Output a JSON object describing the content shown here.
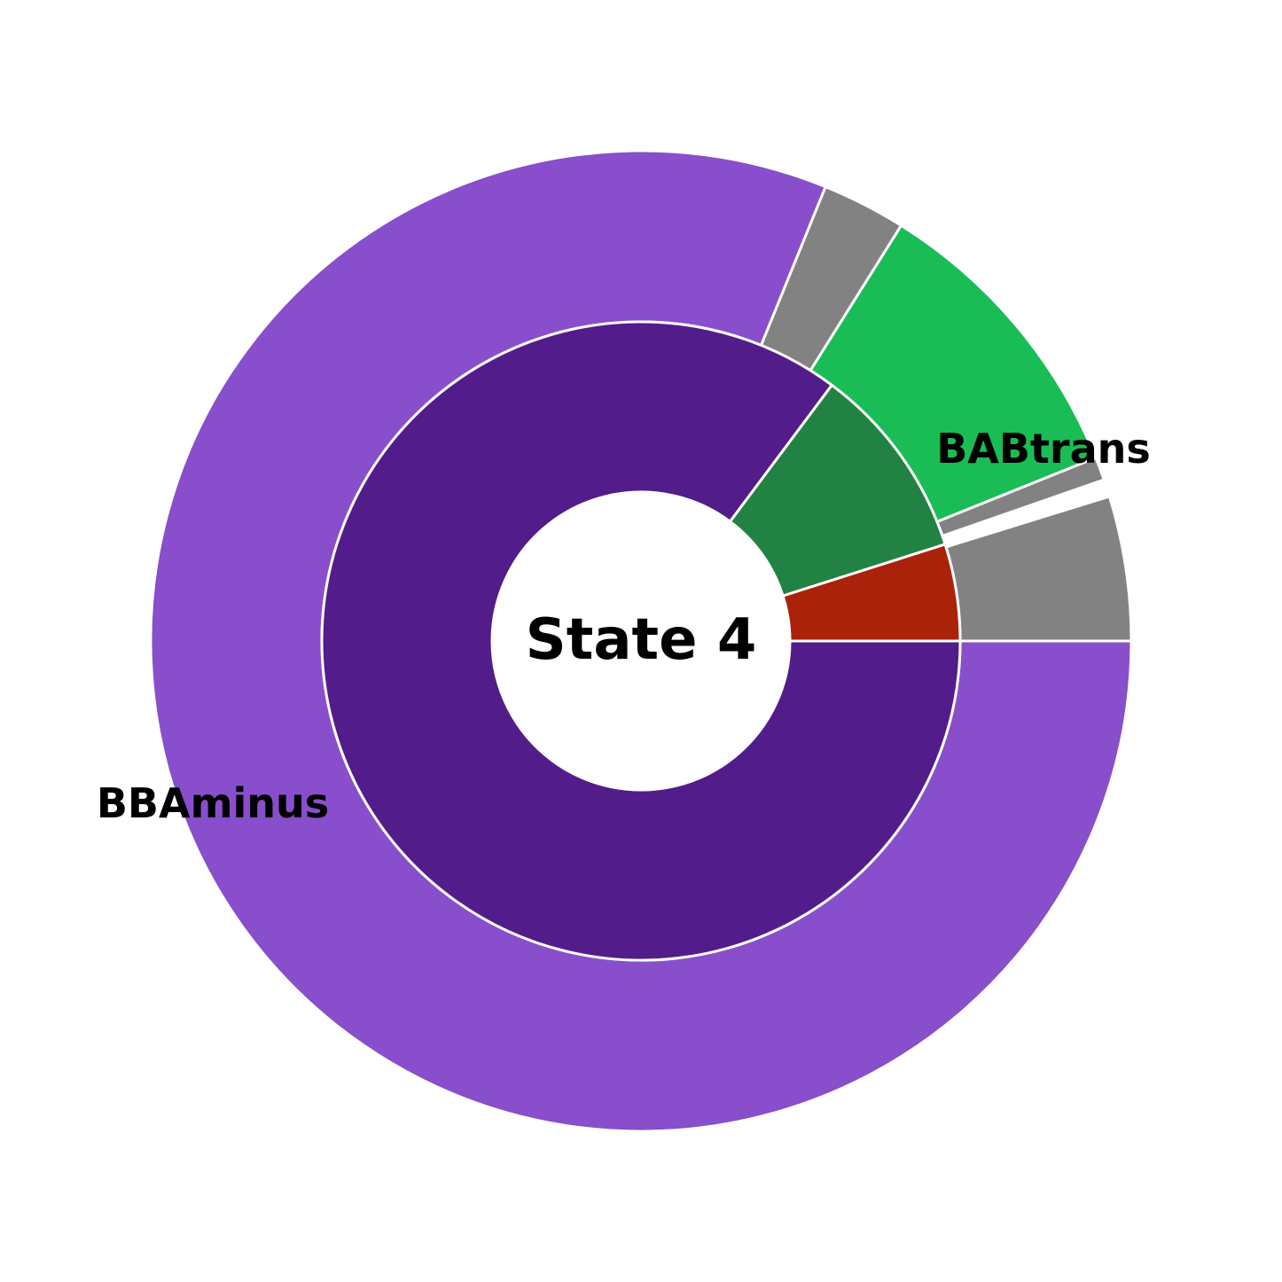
{
  "chart_data": {
    "type": "pie",
    "subtype": "nested-donut",
    "center_text": "State 4",
    "inner_ring": [
      {
        "value": 85.2,
        "color": "#521d8a"
      },
      {
        "value": 9.9,
        "color": "#228243"
      },
      {
        "value": 4.9,
        "color": "#aa220a"
      }
    ],
    "outer_ring": [
      {
        "value": 85.2,
        "color": "#884ecb",
        "label": "BBAminus"
      },
      {
        "value": 2.9,
        "color": "#828282",
        "label": ""
      },
      {
        "value": 10.5,
        "color": "#1abd55",
        "label": "BABtrans"
      },
      {
        "value": 0.8,
        "color": "#828282",
        "label": ""
      },
      {
        "value": 0.6,
        "color": "#ffffff",
        "label": ""
      },
      {
        "value": 5.0,
        "color": "#828282",
        "label": ""
      }
    ],
    "visible_labels": [
      "BBAminus",
      "BABtrans"
    ]
  }
}
